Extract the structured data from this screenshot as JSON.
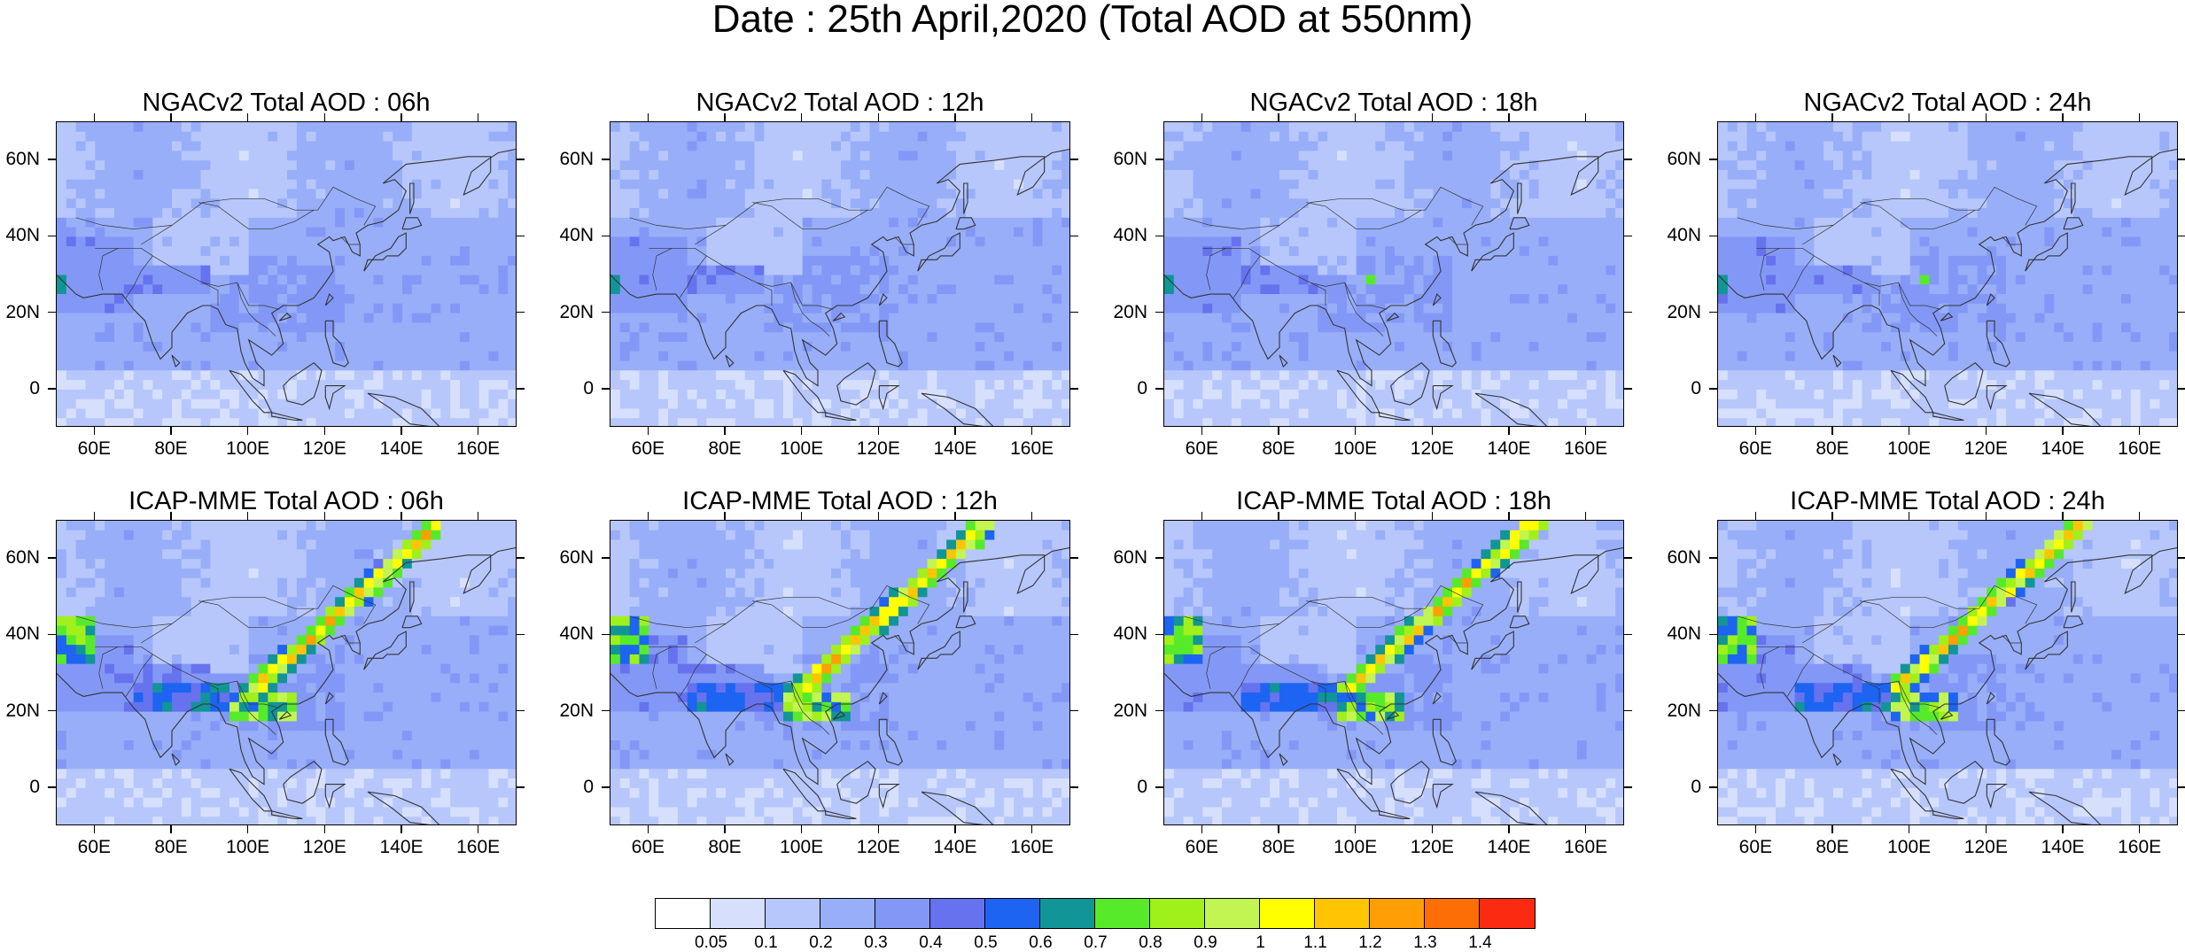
{
  "title": "Date : 25th April,2020 (Total AOD at 550nm)",
  "panels": [
    {
      "title": "NGACv2 Total AOD : 06h",
      "model": "NGACv2",
      "hour": "06h"
    },
    {
      "title": "NGACv2 Total AOD : 12h",
      "model": "NGACv2",
      "hour": "12h"
    },
    {
      "title": "NGACv2 Total AOD : 18h",
      "model": "NGACv2",
      "hour": "18h"
    },
    {
      "title": "NGACv2 Total AOD : 24h",
      "model": "NGACv2",
      "hour": "24h"
    },
    {
      "title": "ICAP-MME Total AOD : 06h",
      "model": "ICAP-MME",
      "hour": "06h"
    },
    {
      "title": "ICAP-MME Total AOD : 12h",
      "model": "ICAP-MME",
      "hour": "12h"
    },
    {
      "title": "ICAP-MME Total AOD : 18h",
      "model": "ICAP-MME",
      "hour": "18h"
    },
    {
      "title": "ICAP-MME Total AOD : 24h",
      "model": "ICAP-MME",
      "hour": "24h"
    }
  ],
  "lat_labels": [
    "60N",
    "40N",
    "20N",
    "0"
  ],
  "lat_values": [
    60,
    40,
    20,
    0
  ],
  "lon_labels": [
    "60E",
    "80E",
    "100E",
    "120E",
    "140E",
    "160E"
  ],
  "lon_values": [
    60,
    80,
    100,
    120,
    140,
    160
  ],
  "map_extent": {
    "lon_min": 50,
    "lon_max": 170,
    "lat_min": -10,
    "lat_max": 70
  },
  "colorbar": {
    "labels": [
      "0.05",
      "0.1",
      "0.2",
      "0.3",
      "0.4",
      "0.5",
      "0.6",
      "0.7",
      "0.8",
      "0.9",
      "1",
      "1.1",
      "1.2",
      "1.3",
      "1.4"
    ],
    "colors": [
      "#ffffff",
      "#d6e0fd",
      "#b7c7fb",
      "#98aef8",
      "#8398f6",
      "#6672ee",
      "#1d64f2",
      "#119596",
      "#57ea2b",
      "#a0f01c",
      "#c2f551",
      "#ffff00",
      "#ffc505",
      "#ff9e05",
      "#fd6e07",
      "#fb2a10"
    ]
  }
}
